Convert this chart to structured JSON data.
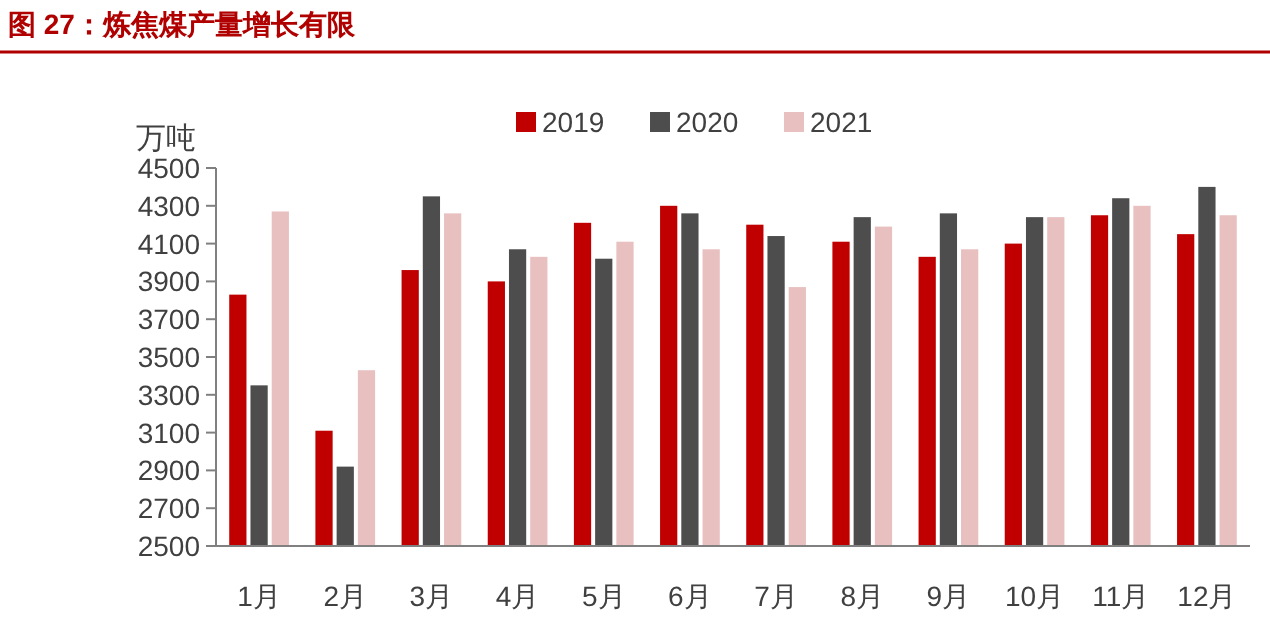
{
  "chart_data": {
    "type": "bar",
    "title": "图 27：炼焦煤产量增长有限",
    "ylabel": "万吨",
    "categories": [
      "1月",
      "2月",
      "3月",
      "4月",
      "5月",
      "6月",
      "7月",
      "8月",
      "9月",
      "10月",
      "11月",
      "12月"
    ],
    "series": [
      {
        "name": "2019",
        "color": "#c00000",
        "values": [
          3830,
          3110,
          3960,
          3900,
          4210,
          4300,
          4200,
          4110,
          4030,
          4100,
          4250,
          4150
        ]
      },
      {
        "name": "2020",
        "color": "#4d4d4d",
        "values": [
          3350,
          2920,
          4350,
          4070,
          4020,
          4260,
          4140,
          4240,
          4260,
          4240,
          4340,
          4400
        ]
      },
      {
        "name": "2021",
        "color": "#e8c0c0",
        "values": [
          4270,
          3430,
          4260,
          4030,
          4110,
          4070,
          3870,
          4190,
          4070,
          4240,
          4300,
          4250
        ]
      }
    ],
    "ylim": [
      2500,
      4500
    ],
    "yticks": [
      2500,
      2700,
      2900,
      3100,
      3300,
      3500,
      3700,
      3900,
      4100,
      4300,
      4500
    ],
    "grid": false,
    "legend": "top"
  }
}
